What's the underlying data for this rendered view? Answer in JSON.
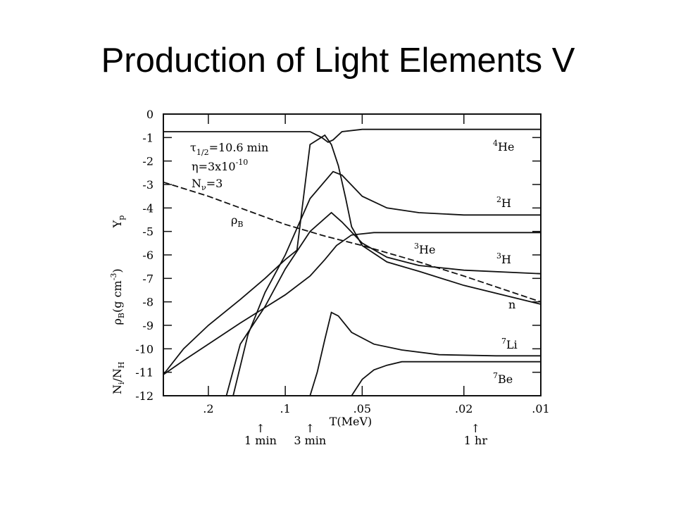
{
  "slide": {
    "title": "Production of Light Elements V"
  },
  "chart_data": {
    "type": "line",
    "x_scale": "log",
    "x_reversed": true,
    "xlabel": "T(MeV)",
    "xlim": [
      0.3,
      0.01
    ],
    "ylim": [
      -12,
      0
    ],
    "y_ticks": [
      "0",
      "-1",
      "-2",
      "-3",
      "-4",
      "-5",
      "-6",
      "-7",
      "-8",
      "-9",
      "-10",
      "-11",
      "-12"
    ],
    "x_ticks": [
      {
        "value": 0.2,
        "label": ".2"
      },
      {
        "value": 0.1,
        "label": ".1"
      },
      {
        "value": 0.05,
        "label": ".05"
      },
      {
        "value": 0.02,
        "label": ".02"
      },
      {
        "value": 0.01,
        "label": ".01"
      }
    ],
    "ylabel_parts": [
      "N",
      "i",
      "/N",
      "H",
      "ρ",
      "B",
      "(g cm",
      "-3",
      ")",
      "Y",
      "p"
    ],
    "params": {
      "tau_prefix": "τ",
      "tau_sub": "1/2",
      "tau_value": "=10.6 min",
      "eta_prefix": "η=3x10",
      "eta_exp": "-10",
      "nnu_prefix": "N",
      "nnu_sub": "ν",
      "nnu_value": "=3"
    },
    "time_markers": [
      {
        "T": 0.125,
        "line1": "↑",
        "line2": "1 min"
      },
      {
        "T": 0.08,
        "line1": "↑",
        "line2": "3 min"
      },
      {
        "T": 0.018,
        "line1": "↑",
        "line2": "1 hr"
      }
    ],
    "series": [
      {
        "name_sup": "4",
        "name": "He",
        "points": [
          [
            0.3,
            -0.75
          ],
          [
            0.08,
            -0.75
          ],
          [
            0.072,
            -1.0
          ],
          [
            0.068,
            -1.2
          ],
          [
            0.065,
            -1.1
          ],
          [
            0.06,
            -0.75
          ],
          [
            0.05,
            -0.65
          ],
          [
            0.01,
            -0.65
          ]
        ]
      },
      {
        "name_sup": "2",
        "name": "H",
        "points": [
          [
            0.16,
            -12
          ],
          [
            0.14,
            -9.4
          ],
          [
            0.12,
            -7.6
          ],
          [
            0.1,
            -6.0
          ],
          [
            0.08,
            -3.6
          ],
          [
            0.065,
            -2.45
          ],
          [
            0.06,
            -2.6
          ],
          [
            0.05,
            -3.5
          ],
          [
            0.04,
            -4.0
          ],
          [
            0.03,
            -4.2
          ],
          [
            0.02,
            -4.3
          ],
          [
            0.01,
            -4.3
          ]
        ]
      },
      {
        "name_sup": "3",
        "name": "H",
        "points": [
          [
            0.17,
            -12
          ],
          [
            0.15,
            -9.8
          ],
          [
            0.12,
            -8.2
          ],
          [
            0.1,
            -6.6
          ],
          [
            0.08,
            -5.0
          ],
          [
            0.066,
            -4.2
          ],
          [
            0.06,
            -4.6
          ],
          [
            0.05,
            -5.5
          ],
          [
            0.04,
            -6.1
          ],
          [
            0.03,
            -6.45
          ],
          [
            0.02,
            -6.65
          ],
          [
            0.01,
            -6.8
          ]
        ]
      },
      {
        "name_sup": "3",
        "name": "He",
        "points": [
          [
            0.3,
            -11.1
          ],
          [
            0.25,
            -10.5
          ],
          [
            0.2,
            -9.8
          ],
          [
            0.15,
            -8.9
          ],
          [
            0.1,
            -7.7
          ],
          [
            0.08,
            -6.9
          ],
          [
            0.07,
            -6.2
          ],
          [
            0.063,
            -5.6
          ],
          [
            0.055,
            -5.15
          ],
          [
            0.045,
            -5.05
          ],
          [
            0.01,
            -5.05
          ]
        ]
      },
      {
        "name": "n",
        "points": [
          [
            0.3,
            -11.1
          ],
          [
            0.25,
            -10.0
          ],
          [
            0.2,
            -9.0
          ],
          [
            0.15,
            -7.9
          ],
          [
            0.12,
            -7.0
          ],
          [
            0.1,
            -6.2
          ],
          [
            0.09,
            -5.8
          ],
          [
            0.08,
            -1.3
          ],
          [
            0.07,
            -0.9
          ],
          [
            0.066,
            -1.3
          ],
          [
            0.062,
            -2.2
          ],
          [
            0.058,
            -3.6
          ],
          [
            0.055,
            -4.8
          ],
          [
            0.05,
            -5.6
          ],
          [
            0.04,
            -6.3
          ],
          [
            0.03,
            -6.7
          ],
          [
            0.02,
            -7.3
          ],
          [
            0.01,
            -8.1
          ]
        ]
      },
      {
        "name_sup": "7",
        "name": "Li",
        "points": [
          [
            0.08,
            -12
          ],
          [
            0.075,
            -11.0
          ],
          [
            0.07,
            -9.6
          ],
          [
            0.066,
            -8.45
          ],
          [
            0.062,
            -8.6
          ],
          [
            0.055,
            -9.3
          ],
          [
            0.045,
            -9.8
          ],
          [
            0.035,
            -10.05
          ],
          [
            0.025,
            -10.25
          ],
          [
            0.015,
            -10.3
          ],
          [
            0.01,
            -10.3
          ]
        ]
      },
      {
        "name_sup": "7",
        "name": "Be",
        "points": [
          [
            0.055,
            -12
          ],
          [
            0.05,
            -11.3
          ],
          [
            0.045,
            -10.9
          ],
          [
            0.04,
            -10.7
          ],
          [
            0.035,
            -10.55
          ],
          [
            0.025,
            -10.55
          ],
          [
            0.01,
            -10.55
          ]
        ]
      },
      {
        "name": "ρ",
        "name_sub": "B",
        "style": "dashed",
        "points": [
          [
            0.3,
            -2.9
          ],
          [
            0.2,
            -3.5
          ],
          [
            0.1,
            -4.7
          ],
          [
            0.07,
            -5.2
          ],
          [
            0.05,
            -5.6
          ],
          [
            0.03,
            -6.3
          ],
          [
            0.02,
            -6.9
          ],
          [
            0.01,
            -8.0
          ]
        ]
      }
    ]
  }
}
